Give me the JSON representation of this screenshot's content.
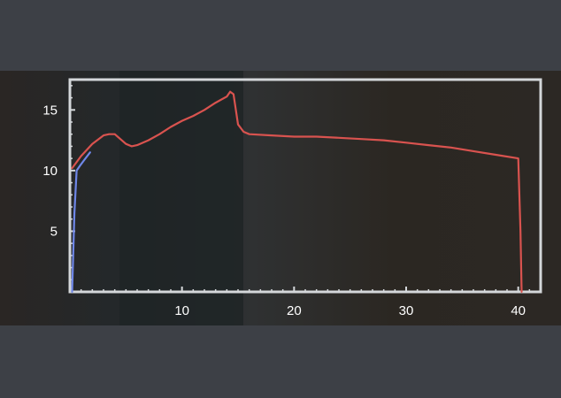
{
  "chart_data": {
    "type": "line",
    "title": "",
    "xlabel": "",
    "ylabel": "",
    "xlim": [
      0,
      42
    ],
    "ylim": [
      0,
      17.5
    ],
    "x_ticks": [
      10,
      20,
      30,
      40
    ],
    "x_tick_labels": [
      "10",
      "20",
      "30",
      "40"
    ],
    "y_ticks": [
      5,
      10,
      15
    ],
    "y_tick_labels": [
      "5",
      "10",
      "15"
    ],
    "grid": false,
    "legend": "none",
    "series": [
      {
        "color": "#d9534f",
        "x": [
          0.2,
          1,
          2,
          3,
          3.5,
          4.0,
          4.5,
          5.0,
          5.5,
          6,
          7,
          8,
          9,
          10,
          11,
          12,
          13,
          14,
          14.3,
          14.6,
          15,
          15.5,
          16,
          18,
          20,
          22,
          24,
          26,
          28,
          30,
          32,
          34,
          36,
          38,
          40,
          40.2,
          40.3
        ],
        "y": [
          10.2,
          11.2,
          12.2,
          12.9,
          13.0,
          13.0,
          12.6,
          12.2,
          12.0,
          12.1,
          12.5,
          13.0,
          13.6,
          14.1,
          14.5,
          15.0,
          15.6,
          16.1,
          16.5,
          16.3,
          13.8,
          13.2,
          13.0,
          12.9,
          12.8,
          12.8,
          12.7,
          12.6,
          12.5,
          12.3,
          12.1,
          11.9,
          11.6,
          11.3,
          11.0,
          5.0,
          0.0
        ]
      },
      {
        "color": "#6f87e8",
        "x": [
          0.2,
          0.4,
          0.6,
          0.9,
          1.3,
          1.8
        ],
        "y": [
          0.0,
          6.5,
          10.0,
          10.4,
          10.9,
          11.5
        ]
      }
    ]
  }
}
